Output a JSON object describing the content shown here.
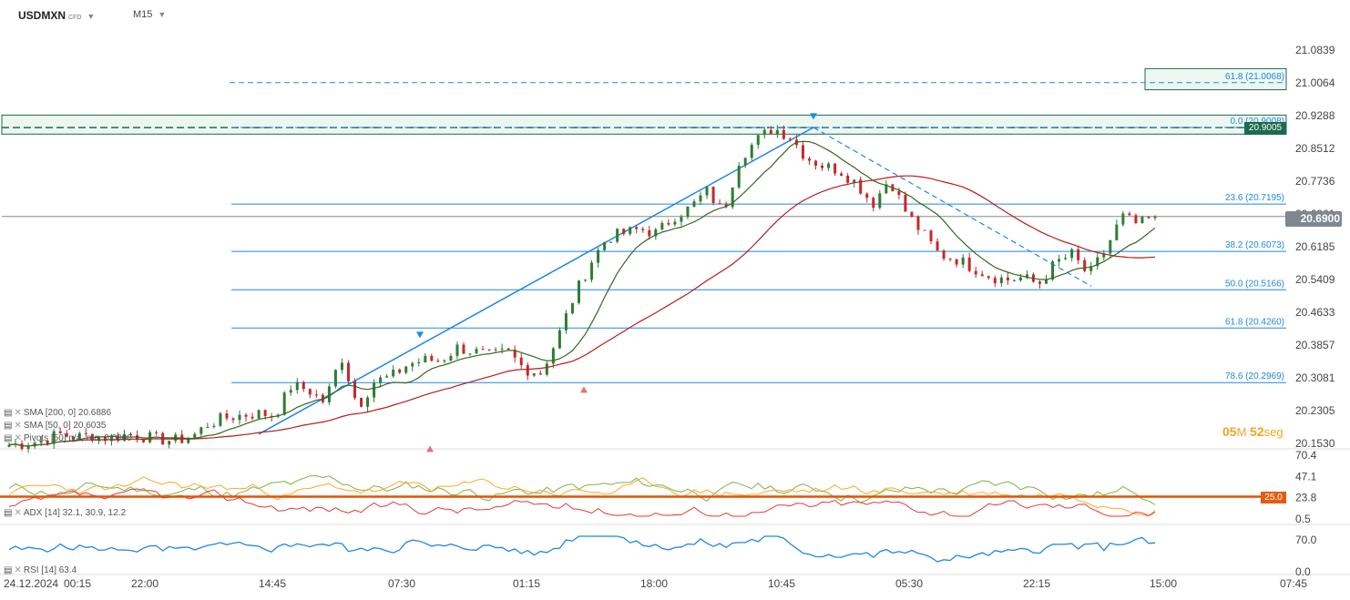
{
  "header": {
    "symbol": "USDMXN",
    "symbol_tag": "CFD",
    "timeframe": "M15"
  },
  "price_tags": {
    "current": "20.6900",
    "resistance": "20.9005",
    "adx_level": "25.0"
  },
  "timer": {
    "minutes": "05",
    "min_unit": "M",
    "seconds": "52",
    "sec_unit": "seg"
  },
  "legends": {
    "sma200": "SMA [200, 0] 20.6886",
    "sma50": "SMA [50, 0] 20.6035",
    "pivots": "Pivots [50] n/a, n/a, 0.0000",
    "adx": "ADX [14] 32.1, 30.9, 12.2",
    "rsi": "RSI [14] 63.4"
  },
  "colors": {
    "candle_up": "#2e7d32",
    "candle_down": "#c62828",
    "sma200": "#b71c1c",
    "sma50": "#33691e",
    "fib": "#1e88e5",
    "adx_main": "#7cb342",
    "adx_plus": "#ffa726",
    "adx_minus": "#e53935",
    "adx_level": "#e65100",
    "rsi": "#1e88e5"
  },
  "chart_data": [
    {
      "type": "candlestick",
      "symbol": "USDMXN",
      "x_tick_labels": [
        "24.12.2024",
        "00:15",
        "22:00",
        "14:45",
        "07:30",
        "01:15",
        "18:00",
        "10:45",
        "05:30",
        "22:15",
        "15:00",
        "07:45"
      ],
      "y_tick_labels": [
        "21.0839",
        "21.0064",
        "20.9288",
        "20.8512",
        "20.7736",
        "20.6961",
        "20.6185",
        "20.5409",
        "20.4633",
        "20.3857",
        "20.3081",
        "20.2305",
        "20.1530"
      ],
      "ylim": [
        20.153,
        21.0839
      ],
      "close_path": [
        20.15,
        20.152,
        20.16,
        20.175,
        20.168,
        20.172,
        20.165,
        20.174,
        20.17,
        20.162,
        20.16,
        20.168,
        20.2,
        20.213,
        20.22,
        20.224,
        20.22,
        20.29,
        20.28,
        20.25,
        20.36,
        20.24,
        20.3,
        20.31,
        20.34,
        20.35,
        20.35,
        20.38,
        20.37,
        20.36,
        20.37,
        20.33,
        20.32,
        20.4,
        20.5,
        20.58,
        20.64,
        20.65,
        20.66,
        20.65,
        20.69,
        20.71,
        20.75,
        20.7,
        20.83,
        20.87,
        20.9,
        20.88,
        20.83,
        20.81,
        20.8,
        20.77,
        20.72,
        20.78,
        20.7,
        20.65,
        20.6,
        20.59,
        20.57,
        20.55,
        20.54,
        20.545,
        20.53,
        20.58,
        20.6,
        20.55,
        20.61,
        20.69,
        20.67,
        20.69
      ],
      "sma200": {
        "label": "SMA [200, 0]",
        "value": 20.6886
      },
      "sma50": {
        "label": "SMA [50, 0]",
        "value": 20.6035
      },
      "fibonacci": [
        {
          "level": "0.0",
          "price": 20.9008
        },
        {
          "level": "23.6",
          "price": 20.7195
        },
        {
          "level": "38.2",
          "price": 20.6073
        },
        {
          "level": "50.0",
          "price": 20.5166
        },
        {
          "level": "61.8",
          "price": 20.426
        },
        {
          "level": "78.6",
          "price": 20.2969
        },
        {
          "level": "61.8",
          "price": 21.0068
        }
      ],
      "horizontal_levels": [
        20.9005,
        20.69
      ],
      "current_price": 20.69
    },
    {
      "type": "line",
      "title": "ADX [14]",
      "values": [
        32.1,
        30.9,
        12.2
      ],
      "y_tick_labels": [
        "70.4",
        "47.1",
        "23.8",
        "0.5"
      ],
      "ylim": [
        0.5,
        70.4
      ],
      "level": 25.0
    },
    {
      "type": "line",
      "title": "RSI [14]",
      "value": 63.4,
      "y_tick_labels": [
        "70.0",
        "0.0"
      ],
      "ylim": [
        0,
        70
      ]
    }
  ]
}
